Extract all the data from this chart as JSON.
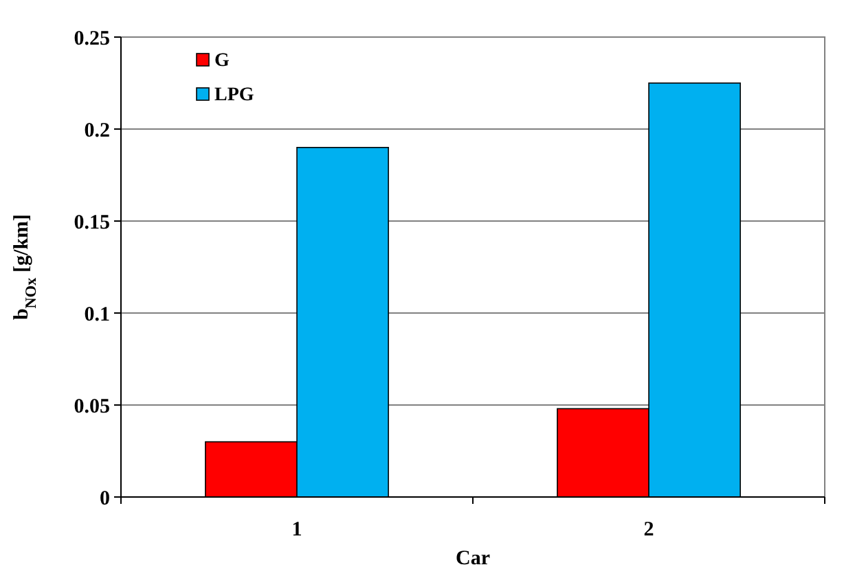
{
  "chart_data": {
    "type": "bar",
    "xlabel": "Car",
    "ylabel": "b$_{NOx}$ [g/km]",
    "categories": [
      "1",
      "2"
    ],
    "series": [
      {
        "name": "G",
        "color": "#ff0000",
        "values": [
          0.03,
          0.048
        ]
      },
      {
        "name": "LPG",
        "color": "#00b0f0",
        "values": [
          0.19,
          0.225
        ]
      }
    ],
    "ylim": [
      0,
      0.25
    ],
    "yticks": [
      0,
      0.05,
      0.1,
      0.15,
      0.2,
      0.25
    ],
    "grid": "y",
    "legend": "top left"
  }
}
